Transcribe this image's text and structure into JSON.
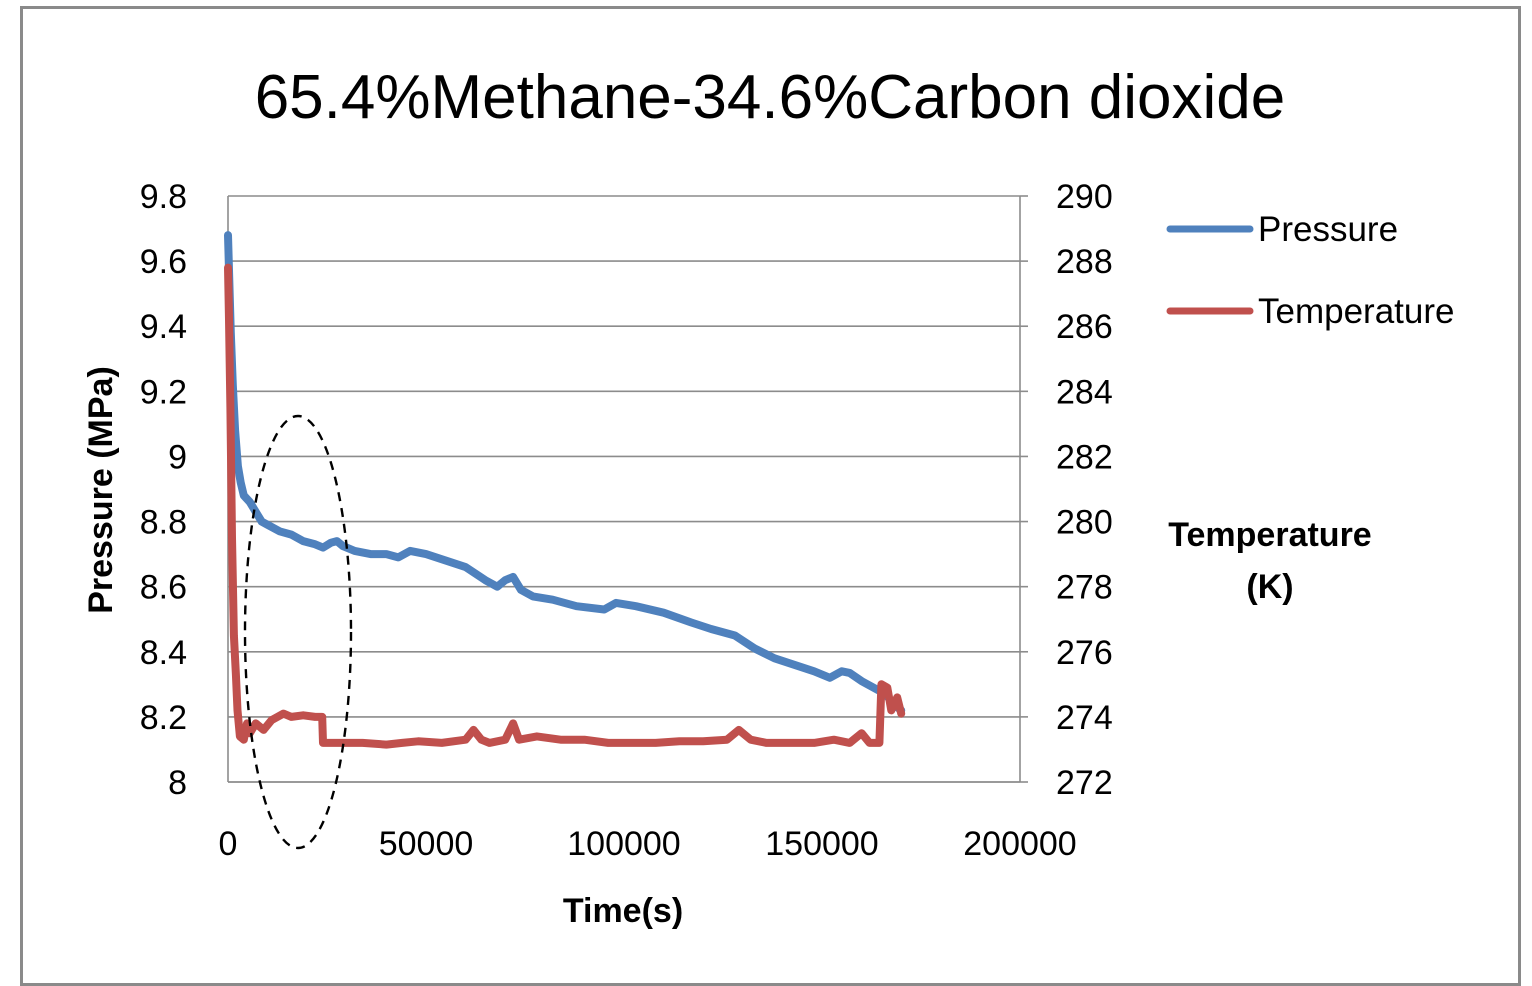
{
  "chart_data": {
    "type": "line",
    "title": "65.4%Methane-34.6%Carbon dioxide",
    "xlabel": "Time(s)",
    "ylabel": "Pressure (MPa)",
    "y2label_lines": [
      "Temperature",
      "(K)"
    ],
    "xlim": [
      0,
      200000
    ],
    "ylim": [
      8,
      9.8
    ],
    "y2lim": [
      272,
      290
    ],
    "x_ticks": [
      "0",
      "50000",
      "100000",
      "150000",
      "200000"
    ],
    "y_ticks": [
      "8",
      "8.2",
      "8.4",
      "8.6",
      "8.8",
      "9",
      "9.2",
      "9.4",
      "9.6",
      "9.8"
    ],
    "y2_ticks": [
      "272",
      "274",
      "276",
      "278",
      "280",
      "282",
      "284",
      "286",
      "288",
      "290"
    ],
    "grid": true,
    "legend_position": "top-right",
    "series": [
      {
        "name": "Pressure",
        "axis": "left",
        "color": "#4f81bd",
        "points": [
          [
            0,
            9.68
          ],
          [
            300,
            9.55
          ],
          [
            700,
            9.38
          ],
          [
            1200,
            9.22
          ],
          [
            1800,
            9.08
          ],
          [
            2500,
            8.97
          ],
          [
            3200,
            8.92
          ],
          [
            4000,
            8.88
          ],
          [
            5500,
            8.86
          ],
          [
            7000,
            8.83
          ],
          [
            8500,
            8.8
          ],
          [
            10000,
            8.79
          ],
          [
            13000,
            8.77
          ],
          [
            16000,
            8.76
          ],
          [
            19000,
            8.74
          ],
          [
            22000,
            8.73
          ],
          [
            24000,
            8.72
          ],
          [
            26000,
            8.735
          ],
          [
            27500,
            8.74
          ],
          [
            29000,
            8.725
          ],
          [
            32000,
            8.71
          ],
          [
            36000,
            8.7
          ],
          [
            40000,
            8.7
          ],
          [
            43000,
            8.69
          ],
          [
            46000,
            8.71
          ],
          [
            50000,
            8.7
          ],
          [
            55000,
            8.68
          ],
          [
            60000,
            8.66
          ],
          [
            65000,
            8.62
          ],
          [
            68000,
            8.6
          ],
          [
            70000,
            8.62
          ],
          [
            72000,
            8.63
          ],
          [
            74000,
            8.59
          ],
          [
            77000,
            8.57
          ],
          [
            82000,
            8.56
          ],
          [
            88000,
            8.54
          ],
          [
            95000,
            8.53
          ],
          [
            98000,
            8.55
          ],
          [
            103000,
            8.54
          ],
          [
            110000,
            8.52
          ],
          [
            117000,
            8.49
          ],
          [
            122000,
            8.47
          ],
          [
            128000,
            8.45
          ],
          [
            133000,
            8.41
          ],
          [
            138000,
            8.38
          ],
          [
            143000,
            8.36
          ],
          [
            148000,
            8.34
          ],
          [
            152000,
            8.32
          ],
          [
            155000,
            8.34
          ],
          [
            157000,
            8.335
          ],
          [
            160000,
            8.31
          ],
          [
            163000,
            8.29
          ],
          [
            166000,
            8.27
          ],
          [
            168000,
            8.24
          ],
          [
            170000,
            8.22
          ]
        ]
      },
      {
        "name": "Temperature",
        "axis": "right",
        "color": "#c0504d",
        "points": [
          [
            0,
            287.8
          ],
          [
            250,
            286.2
          ],
          [
            600,
            283.5
          ],
          [
            1000,
            279.5
          ],
          [
            1500,
            276.5
          ],
          [
            2000,
            275.3
          ],
          [
            2400,
            274.2
          ],
          [
            3000,
            273.4
          ],
          [
            4000,
            273.3
          ],
          [
            4800,
            273.8
          ],
          [
            5500,
            273.5
          ],
          [
            7000,
            273.8
          ],
          [
            9000,
            273.6
          ],
          [
            11000,
            273.9
          ],
          [
            12500,
            274.0
          ],
          [
            14000,
            274.1
          ],
          [
            16000,
            274.0
          ],
          [
            19000,
            274.05
          ],
          [
            22000,
            274.0
          ],
          [
            23800,
            274.0
          ],
          [
            24000,
            273.2
          ],
          [
            28000,
            273.2
          ],
          [
            34000,
            273.2
          ],
          [
            40000,
            273.15
          ],
          [
            44000,
            273.2
          ],
          [
            48000,
            273.25
          ],
          [
            54000,
            273.2
          ],
          [
            60000,
            273.3
          ],
          [
            62000,
            273.6
          ],
          [
            64000,
            273.3
          ],
          [
            66000,
            273.2
          ],
          [
            70000,
            273.3
          ],
          [
            72000,
            273.8
          ],
          [
            73500,
            273.3
          ],
          [
            78000,
            273.4
          ],
          [
            84000,
            273.3
          ],
          [
            90000,
            273.3
          ],
          [
            96000,
            273.2
          ],
          [
            102000,
            273.2
          ],
          [
            108000,
            273.2
          ],
          [
            114000,
            273.25
          ],
          [
            120000,
            273.25
          ],
          [
            126000,
            273.3
          ],
          [
            129000,
            273.6
          ],
          [
            132000,
            273.3
          ],
          [
            136000,
            273.2
          ],
          [
            142000,
            273.2
          ],
          [
            148000,
            273.2
          ],
          [
            153000,
            273.3
          ],
          [
            157000,
            273.2
          ],
          [
            160000,
            273.5
          ],
          [
            162000,
            273.2
          ],
          [
            164500,
            273.2
          ],
          [
            165000,
            275.0
          ],
          [
            166500,
            274.9
          ],
          [
            167500,
            274.2
          ],
          [
            169000,
            274.6
          ],
          [
            170000,
            274.1
          ]
        ]
      }
    ]
  }
}
